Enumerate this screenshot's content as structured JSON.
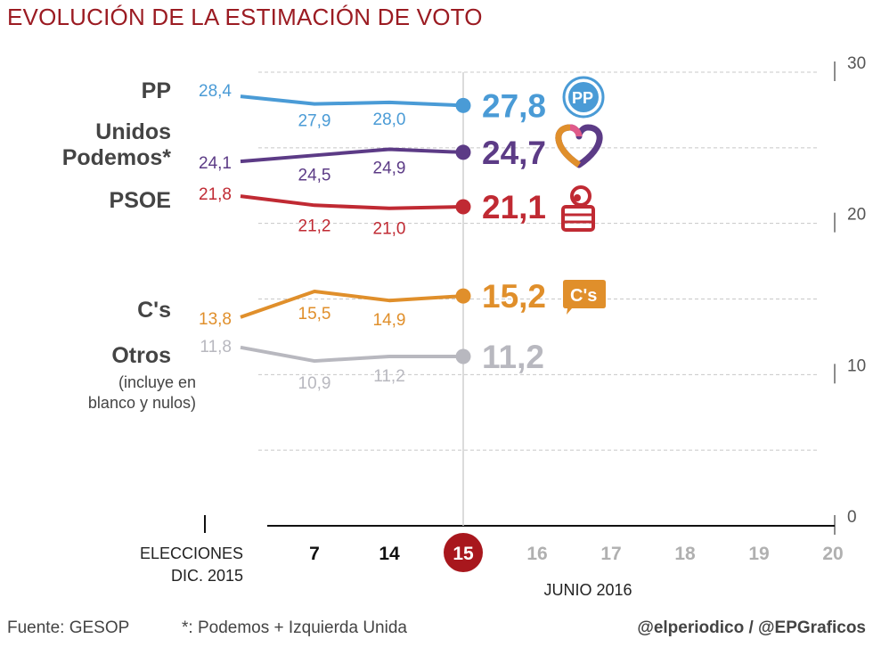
{
  "title": "EVOLUCIÓN DE LA ESTIMACIÓN DE VOTO",
  "labels": {
    "pp": "PP",
    "up_line1": "Unidos",
    "up_line2": "Podemos*",
    "psoe": "PSOE",
    "cs": "C's",
    "otros": "Otros",
    "otros_note1": "(incluye en",
    "otros_note2": "blanco y nulos)"
  },
  "footer": {
    "source": "Fuente: GESOP",
    "note": "*: Podemos + Izquierda Unida",
    "credit": "@elperiodico / @EPGraficos"
  },
  "colors": {
    "title": "#9b1b22",
    "pp": "#4a9bd6",
    "up": "#5c3b86",
    "psoe": "#c02a33",
    "cs": "#e08f2b",
    "otros": "#b8b8bf",
    "highlight": "#a8171d",
    "future": "#b0b0b0"
  },
  "icons": [
    "pp-logo-icon",
    "unidos-podemos-heart-icon",
    "psoe-rose-fist-icon",
    "cs-logo-icon"
  ],
  "chart_data": {
    "type": "line",
    "xlabel_election_line1": "ELECCIONES",
    "xlabel_election_line2": "DIC. 2015",
    "xlabel_month": "JUNIO 2016",
    "x_positions": [
      "ELECCIONES DIC. 2015",
      "7",
      "14",
      "15",
      "16",
      "17",
      "18",
      "19",
      "20"
    ],
    "highlight": "15",
    "ylim": [
      0,
      30
    ],
    "yticks": [
      0,
      10,
      20,
      30
    ],
    "grid": true,
    "series": [
      {
        "name": "PP",
        "key": "pp",
        "values": [
          28.4,
          27.9,
          28.0,
          27.8
        ],
        "labels": [
          "28,4",
          "27,9",
          "28,0",
          "27,8"
        ]
      },
      {
        "name": "Unidos Podemos*",
        "key": "up",
        "values": [
          24.1,
          24.5,
          24.9,
          24.7
        ],
        "labels": [
          "24,1",
          "24,5",
          "24,9",
          "24,7"
        ]
      },
      {
        "name": "PSOE",
        "key": "psoe",
        "values": [
          21.8,
          21.2,
          21.0,
          21.1
        ],
        "labels": [
          "21,8",
          "21,2",
          "21,0",
          "21,1"
        ]
      },
      {
        "name": "C's",
        "key": "cs",
        "values": [
          13.8,
          15.5,
          14.9,
          15.2
        ],
        "labels": [
          "13,8",
          "15,5",
          "14,9",
          "15,2"
        ]
      },
      {
        "name": "Otros",
        "key": "otros",
        "values": [
          11.8,
          10.9,
          11.2,
          11.2
        ],
        "labels": [
          "11,8",
          "10,9",
          "11,2",
          "11,2"
        ]
      }
    ]
  }
}
